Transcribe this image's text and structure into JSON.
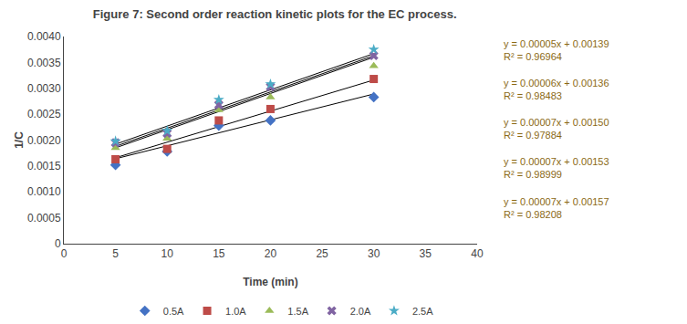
{
  "chart_data": {
    "type": "scatter",
    "title": "Figure 7: Second order reaction kinetic plots for the EC process.",
    "xlabel": "Time (min)",
    "ylabel": "1/C",
    "xlim": [
      0,
      40
    ],
    "ylim": [
      0,
      0.004
    ],
    "xticks": [
      0,
      5,
      10,
      15,
      20,
      25,
      30,
      35,
      40
    ],
    "yticks": [
      0,
      0.0005,
      {
        "value": 0.001,
        "label": "0.0010"
      },
      0.0015,
      {
        "value": 0.002,
        "label": "0.0020"
      },
      0.0025,
      {
        "value": 0.003,
        "label": "0.0030"
      },
      0.0035,
      {
        "value": 0.004,
        "label": "0.0040"
      }
    ],
    "grid": false,
    "legend": "bottom",
    "series": [
      {
        "name": "0.5A",
        "color": "#4472C4",
        "marker": "diamond",
        "x": [
          5,
          10,
          15,
          20,
          30
        ],
        "values": [
          0.00152,
          0.00178,
          0.00228,
          0.00238,
          0.00283
        ],
        "trendline": {
          "x": [
            5,
            30
          ],
          "values": [
            0.00164,
            0.00289
          ],
          "color": "#000000"
        }
      },
      {
        "name": "1.0A",
        "color": "#BE4B48",
        "marker": "square",
        "x": [
          5,
          10,
          15,
          20,
          30
        ],
        "values": [
          0.00163,
          0.00183,
          0.00238,
          0.0026,
          0.00318
        ],
        "trendline": {
          "x": [
            5,
            30
          ],
          "values": [
            0.00166,
            0.00316
          ],
          "color": "#000000"
        }
      },
      {
        "name": "1.5A",
        "color": "#9BBB59",
        "marker": "triangle-up",
        "x": [
          5,
          10,
          15,
          20,
          30
        ],
        "values": [
          0.00185,
          0.00203,
          0.00258,
          0.00283,
          0.00343
        ],
        "trendline": {
          "x": [
            5,
            30
          ],
          "values": [
            0.00185,
            0.0036
          ],
          "color": "#000000"
        }
      },
      {
        "name": "2.0A",
        "color": "#8064A2",
        "marker": "x",
        "x": [
          5,
          10,
          15,
          20,
          30
        ],
        "values": [
          0.00195,
          0.00213,
          0.00268,
          0.00303,
          0.00363
        ],
        "trendline": {
          "x": [
            5,
            30
          ],
          "values": [
            0.00188,
            0.00363
          ],
          "color": "#000000"
        }
      },
      {
        "name": "2.5A",
        "color": "#4BACC6",
        "marker": "star",
        "x": [
          5,
          10,
          15,
          20,
          30
        ],
        "values": [
          0.00198,
          0.00218,
          0.00278,
          0.00308,
          0.00375
        ],
        "trendline": {
          "x": [
            5,
            30
          ],
          "values": [
            0.00192,
            0.00367
          ],
          "color": "#000000"
        }
      }
    ],
    "annotations": [
      {
        "text": "y = 0.00005x + 0.00139\nR² = 0.96964",
        "color": "#8B6914"
      },
      {
        "text": "y = 0.00006x + 0.00136\nR² = 0.98483",
        "color": "#8B6914"
      },
      {
        "text": "y = 0.00007x + 0.00150\nR² = 0.97884",
        "color": "#8B6914"
      },
      {
        "text": "y = 0.00007x + 0.00153\nR² = 0.98999",
        "color": "#8B6914"
      },
      {
        "text": "y = 0.00007x + 0.00157\nR² = 0.98208",
        "color": "#8B6914"
      }
    ]
  }
}
